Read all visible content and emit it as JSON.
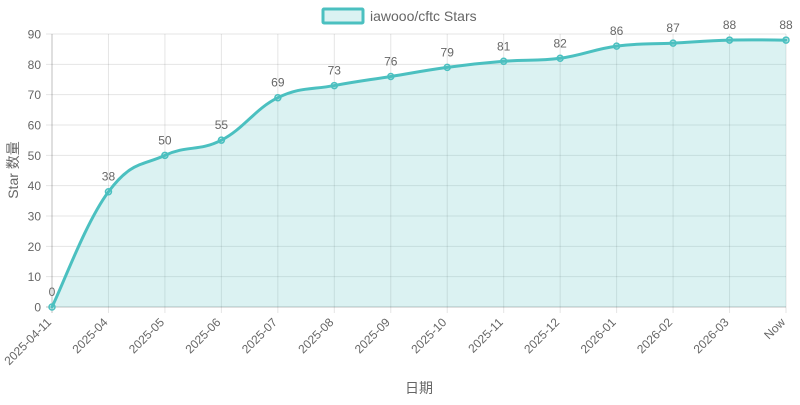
{
  "chart_data": {
    "type": "area",
    "categories": [
      "2025-04-11",
      "2025-04",
      "2025-05",
      "2025-06",
      "2025-07",
      "2025-08",
      "2025-09",
      "2025-10",
      "2025-11",
      "2025-12",
      "2026-01",
      "2026-02",
      "2026-03",
      "Now"
    ],
    "series": [
      {
        "name": "iawooo/cftc Stars",
        "values": [
          0,
          38,
          50,
          55,
          69,
          73,
          76,
          79,
          81,
          82,
          86,
          87,
          88,
          88
        ],
        "color": "#4bc0c0",
        "fill": "rgba(75,192,192,0.2)"
      }
    ],
    "ylabel": "Star 数量",
    "xlabel": "日期",
    "ylim": [
      0,
      90
    ],
    "yticks": [
      0,
      10,
      20,
      30,
      40,
      50,
      60,
      70,
      80,
      90
    ],
    "grid": true,
    "legend": "top-center",
    "data_labels": true
  }
}
